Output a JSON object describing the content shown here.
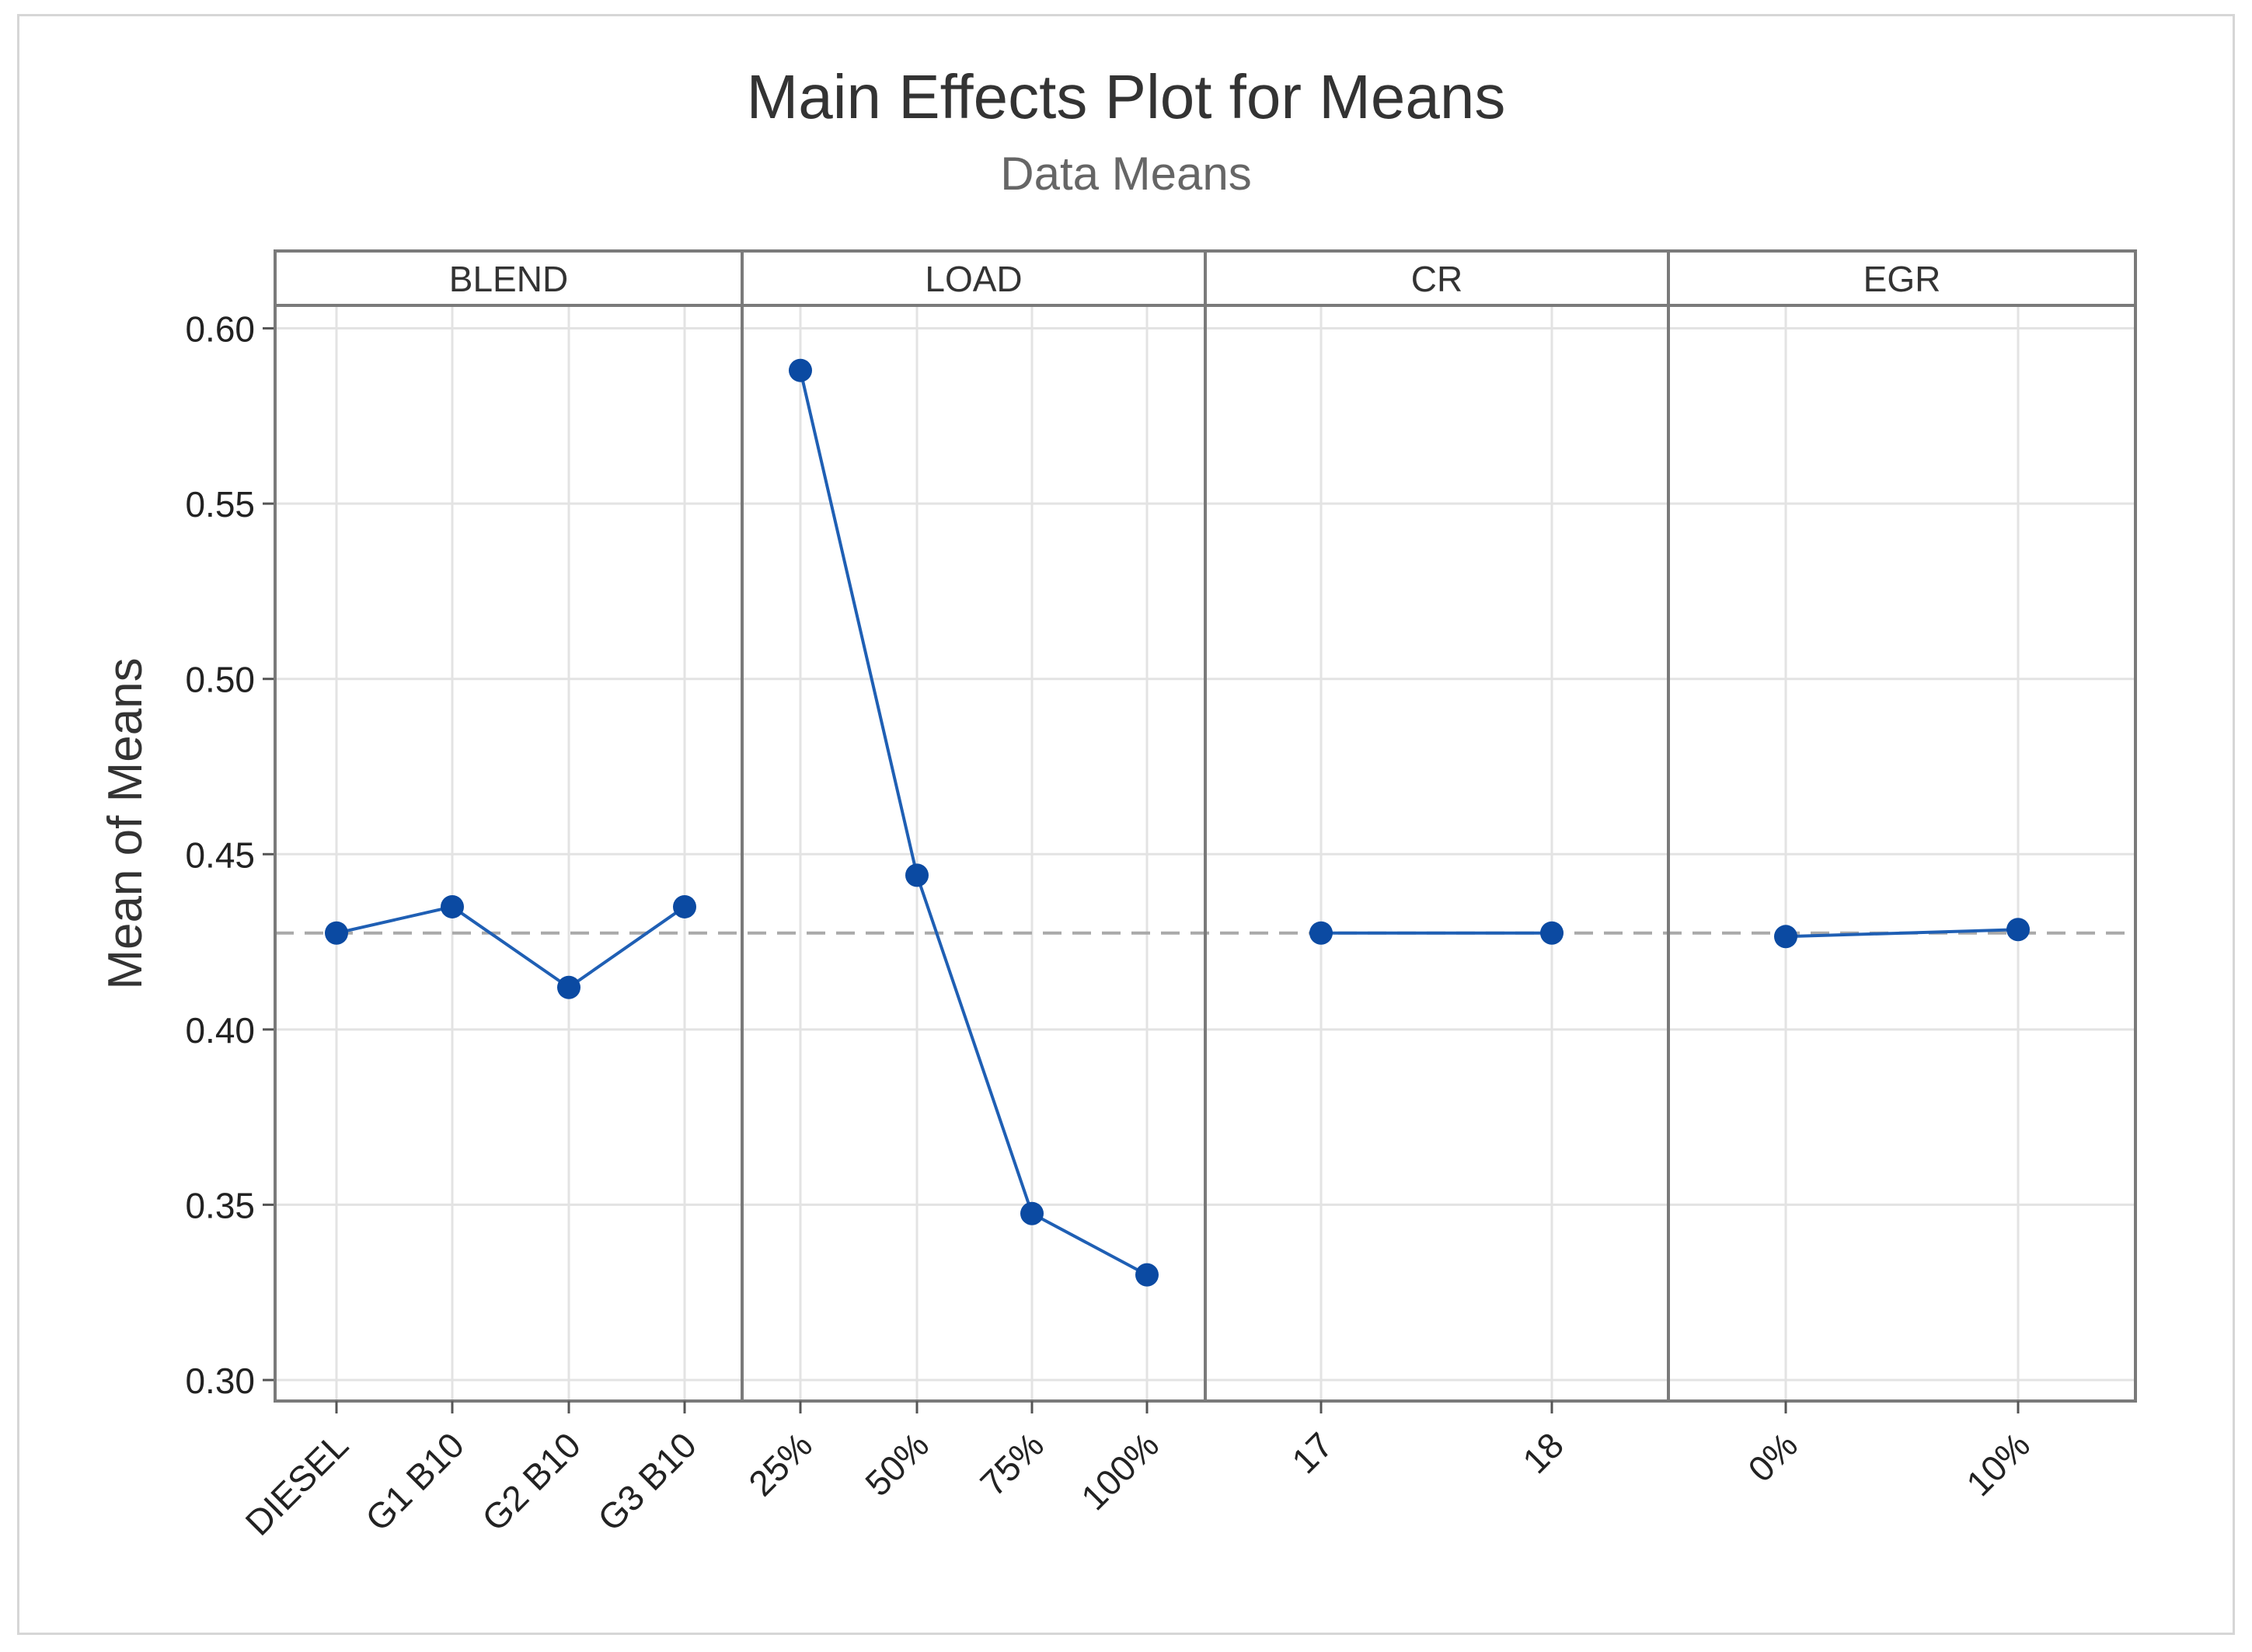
{
  "chart_data": {
    "type": "line",
    "title": "Main Effects Plot for Means",
    "subtitle": "Data Means",
    "ylabel": "Mean of Means",
    "ylim": [
      0.3,
      0.605
    ],
    "yticks": [
      "0.30",
      "0.35",
      "0.40",
      "0.45",
      "0.50",
      "0.55",
      "0.60"
    ],
    "grand_mean": 0.4275,
    "panels": [
      {
        "name": "BLEND",
        "categories": [
          "DIESEL",
          "G1 B10",
          "G2 B10",
          "G3 B10"
        ],
        "values": [
          0.4275,
          0.435,
          0.412,
          0.435
        ]
      },
      {
        "name": "LOAD",
        "categories": [
          "25%",
          "50%",
          "75%",
          "100%"
        ],
        "values": [
          0.588,
          0.444,
          0.3475,
          0.33
        ]
      },
      {
        "name": "CR",
        "categories": [
          "17",
          "18"
        ],
        "values": [
          0.4275,
          0.4275
        ]
      },
      {
        "name": "EGR",
        "categories": [
          "0%",
          "10%"
        ],
        "values": [
          0.4265,
          0.4285
        ]
      }
    ],
    "colors": {
      "series": "#1f5fb4",
      "marker": "#0b4aa2",
      "reference": "#a9a9a9",
      "grid": "#e3e3e3",
      "panel_border": "#7a7a7a"
    }
  }
}
